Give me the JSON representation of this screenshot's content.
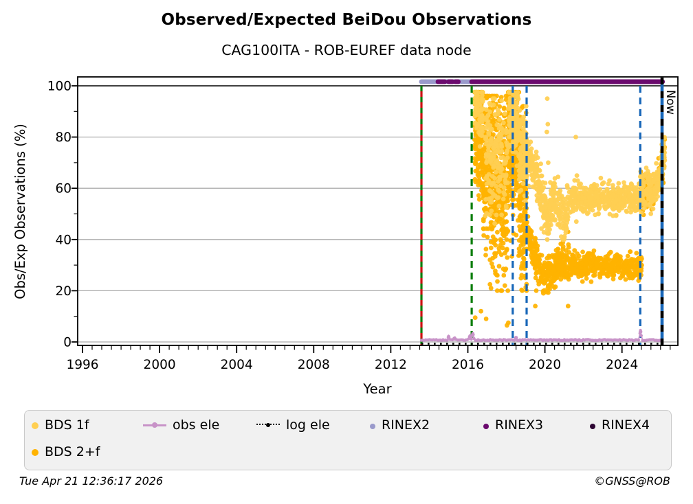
{
  "header": {
    "title": "Observed/Expected BeiDou Observations",
    "subtitle": "CAG100ITA - ROB-EUREF data node"
  },
  "footer": {
    "timestamp": "Tue Apr 21 12:36:17 2026",
    "copyright": "©GNSS@ROB"
  },
  "legend": {
    "items": [
      {
        "label": "BDS 1f",
        "color": "#FFCF52",
        "marker": "dot",
        "size": 10
      },
      {
        "label": "obs ele",
        "color": "#C893C8",
        "marker": "line-dot",
        "size": 8
      },
      {
        "label": "log ele",
        "color": "#000000",
        "marker": "dotted-line-dot",
        "size": 6
      },
      {
        "label": "RINEX2",
        "color": "#9A9ACB",
        "marker": "dot",
        "size": 8
      },
      {
        "label": "RINEX3",
        "color": "#6B0A6E",
        "marker": "dot",
        "size": 8
      },
      {
        "label": "RINEX4",
        "color": "#2E0633",
        "marker": "dot",
        "size": 8
      },
      {
        "label": "BDS 2+f",
        "color": "#FFB300",
        "marker": "dot",
        "size": 10
      }
    ]
  },
  "chart_data": {
    "type": "scatter",
    "title": "Observed/Expected BeiDou Observations",
    "subtitle": "CAG100ITA - ROB-EUREF data node",
    "xlabel": "Year",
    "ylabel": "Obs/Exp Observations (%)",
    "xlim": [
      1995.75,
      2026.9
    ],
    "ylim": [
      -1,
      103.5
    ],
    "xticks": [
      1996,
      2000,
      2004,
      2008,
      2012,
      2016,
      2020,
      2024
    ],
    "yticks": [
      0,
      20,
      40,
      60,
      80,
      100
    ],
    "x_minor_step": 0.5,
    "y_minor_step": 10,
    "grid": "horizontal-gray",
    "grid_color": "#ABABAB",
    "hlines": [
      {
        "y": 100,
        "color": "#000000"
      }
    ],
    "vlines": [
      {
        "x": 2013.59,
        "colors": [
          "#CC1111",
          "#0A7D0A"
        ],
        "style": "dashed"
      },
      {
        "x": 2016.2,
        "colors": [
          "#0A7D0A"
        ],
        "style": "dashed"
      },
      {
        "x": 2018.33,
        "colors": [
          "#1766B8"
        ],
        "style": "dashed"
      },
      {
        "x": 2019.05,
        "colors": [
          "#1766B8"
        ],
        "style": "dashed"
      },
      {
        "x": 2024.95,
        "colors": [
          "#1766B8"
        ],
        "style": "dashed"
      }
    ],
    "now_line": {
      "x": 2026.08,
      "label": "Now",
      "colors": [
        "#000000",
        "#1766B8"
      ]
    },
    "rinex_availability": [
      {
        "name": "RINEX2",
        "color": "#9A9ACB",
        "y": 101.6,
        "segments": [
          [
            2013.59,
            2016.2
          ]
        ]
      },
      {
        "name": "RINEX3",
        "color": "#6B0A6E",
        "y": 101.6,
        "segments": [
          [
            2014.45,
            2014.8
          ],
          [
            2015.0,
            2015.2
          ],
          [
            2015.35,
            2015.5
          ],
          [
            2016.2,
            2026.1
          ]
        ]
      },
      {
        "name": "RINEX4",
        "color": "#2E0633",
        "y": 101.6,
        "segments": []
      }
    ],
    "series": [
      {
        "name": "BDS 2+f",
        "color": "#FFB300",
        "type": "scatter-cloud",
        "clusters": [
          {
            "path": [
              [
                2016.35,
                85
              ],
              [
                2016.8,
                78
              ]
            ],
            "sd": 12,
            "clip": [
              50,
              97.5
            ],
            "n": 190
          },
          {
            "path": [
              [
                2016.8,
                70
              ],
              [
                2017.2,
                62
              ],
              [
                2017.7,
                60
              ],
              [
                2018.1,
                62
              ]
            ],
            "sd": 17,
            "clip": [
              20,
              96
            ],
            "n": 480
          },
          {
            "path": [
              [
                2018.1,
                78
              ],
              [
                2018.65,
                75
              ]
            ],
            "sd": 15,
            "clip": [
              28,
              97.5
            ],
            "n": 270
          },
          {
            "path": [
              [
                2018.65,
                60
              ],
              [
                2019.05,
                52
              ]
            ],
            "sd": 17,
            "clip": [
              20,
              92
            ],
            "n": 180
          },
          {
            "path": [
              [
                2019.05,
                44
              ],
              [
                2019.3,
                38
              ],
              [
                2019.55,
                33
              ],
              [
                2019.8,
                29
              ],
              [
                2020.0,
                25
              ],
              [
                2020.2,
                26
              ],
              [
                2020.45,
                29
              ],
              [
                2020.7,
                31
              ],
              [
                2021.0,
                29
              ],
              [
                2021.25,
                30
              ]
            ],
            "sd": 3.5,
            "clip": [
              19,
              50
            ],
            "n": 350
          },
          {
            "path": [
              [
                2021.25,
                30
              ],
              [
                2021.8,
                29
              ],
              [
                2022.3,
                31
              ],
              [
                2022.8,
                30
              ],
              [
                2023.3,
                29
              ],
              [
                2023.8,
                30
              ],
              [
                2024.3,
                29
              ],
              [
                2024.8,
                30
              ],
              [
                2025.05,
                29
              ]
            ],
            "sd": 2.3,
            "clip": [
              22,
              37
            ],
            "n": 420
          },
          {
            "path": [
              [
                2024.95,
                59
              ],
              [
                2025.15,
                56
              ],
              [
                2025.35,
                59
              ],
              [
                2025.55,
                57
              ],
              [
                2025.75,
                61
              ],
              [
                2025.95,
                64
              ],
              [
                2026.1,
                69
              ],
              [
                2026.22,
                74
              ]
            ],
            "sd": 3.8,
            "clip": [
              28,
              79
            ],
            "n": 160
          }
        ],
        "outliers": [
          [
            2016.38,
            9.5
          ],
          [
            2016.68,
            12
          ],
          [
            2016.95,
            9
          ],
          [
            2017.15,
            22.5
          ],
          [
            2017.2,
            21
          ],
          [
            2018.03,
            6.5
          ],
          [
            2018.1,
            7.5
          ],
          [
            2019.5,
            14
          ],
          [
            2019.55,
            20
          ],
          [
            2021.15,
            48
          ],
          [
            2021.2,
            43
          ],
          [
            2021.22,
            38
          ],
          [
            2021.25,
            35
          ],
          [
            2021.3,
            31
          ],
          [
            2021.2,
            14
          ],
          [
            2022.4,
            23.5
          ],
          [
            2025.0,
            33
          ],
          [
            2025.02,
            30
          ]
        ]
      },
      {
        "name": "BDS 1f",
        "color": "#FFCF52",
        "type": "scatter-cloud",
        "clusters": [
          {
            "path": [
              [
                2016.35,
                91
              ],
              [
                2016.8,
                88
              ]
            ],
            "sd": 5,
            "clip": [
              75,
              97.5
            ],
            "n": 70
          },
          {
            "path": [
              [
                2016.9,
                74
              ],
              [
                2018.1,
                72
              ]
            ],
            "sd": 11,
            "clip": [
              42,
              95
            ],
            "n": 180
          },
          {
            "path": [
              [
                2018.1,
                88
              ],
              [
                2018.65,
                85
              ]
            ],
            "sd": 7,
            "clip": [
              60,
              97.5
            ],
            "n": 120
          },
          {
            "path": [
              [
                2018.65,
                76
              ],
              [
                2019.05,
                72
              ]
            ],
            "sd": 8,
            "clip": [
              55,
              92
            ],
            "n": 100
          },
          {
            "path": [
              [
                2019.05,
                72
              ],
              [
                2019.3,
                69
              ],
              [
                2019.55,
                65
              ],
              [
                2019.8,
                59
              ],
              [
                2020.0,
                52
              ],
              [
                2020.15,
                48
              ],
              [
                2020.3,
                53
              ],
              [
                2020.5,
                56
              ],
              [
                2020.75,
                53
              ],
              [
                2020.95,
                49
              ],
              [
                2021.1,
                50
              ],
              [
                2021.25,
                54
              ]
            ],
            "sd": 4.5,
            "clip": [
              40,
              82
            ],
            "n": 330
          },
          {
            "path": [
              [
                2021.25,
                55
              ],
              [
                2021.7,
                57
              ],
              [
                2022.2,
                55
              ],
              [
                2022.7,
                57
              ],
              [
                2023.2,
                56
              ],
              [
                2023.7,
                55
              ],
              [
                2024.2,
                57
              ],
              [
                2024.6,
                55
              ],
              [
                2024.93,
                57
              ]
            ],
            "sd": 2.7,
            "clip": [
              47,
              64
            ],
            "n": 440
          },
          {
            "path": [
              [
                2024.95,
                61
              ],
              [
                2025.15,
                57
              ],
              [
                2025.35,
                60
              ],
              [
                2025.55,
                58
              ],
              [
                2025.75,
                62
              ],
              [
                2025.95,
                66
              ],
              [
                2026.1,
                71
              ],
              [
                2026.22,
                75
              ]
            ],
            "sd": 3.6,
            "clip": [
              50,
              80
            ],
            "n": 190
          }
        ],
        "outliers": [
          [
            2020.12,
            95
          ],
          [
            2020.15,
            85
          ],
          [
            2020.1,
            82
          ],
          [
            2020.17,
            70
          ],
          [
            2020.14,
            55
          ],
          [
            2020.16,
            48
          ],
          [
            2021.6,
            80
          ],
          [
            2021.66,
            65
          ],
          [
            2021.7,
            63
          ],
          [
            2021.63,
            47
          ],
          [
            2022.9,
            64
          ],
          [
            2023.35,
            63
          ]
        ]
      },
      {
        "name": "obs ele",
        "color": "#C893C8",
        "type": "line-markers",
        "range": [
          2013.59,
          2026.08
        ],
        "base": 0.55,
        "bumps": [
          [
            2015.0,
            1.3
          ],
          [
            2015.3,
            0.9
          ],
          [
            2016.1,
            1.6
          ],
          [
            2016.26,
            2.4
          ],
          [
            2018.5,
            1.0
          ],
          [
            2024.96,
            3.8
          ]
        ]
      },
      {
        "name": "log ele",
        "color": "#000000",
        "type": "dotted-line",
        "range": [
          2013.59,
          2026.08
        ],
        "y": -0.7
      }
    ]
  }
}
